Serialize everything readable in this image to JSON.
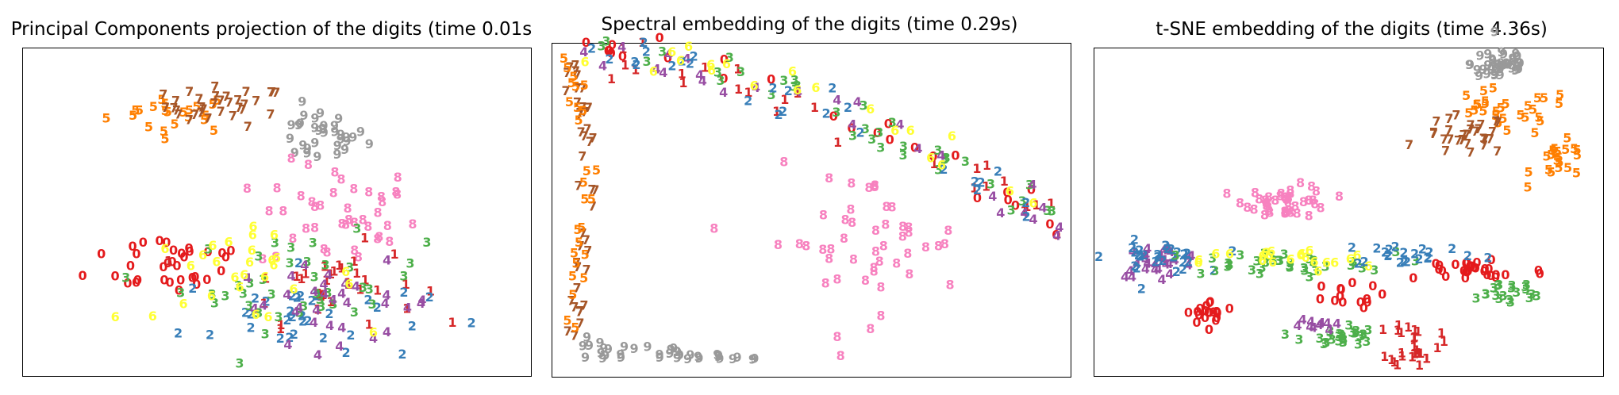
{
  "palette": {
    "0": "#e41a1c",
    "1": "#d62728",
    "2": "#377eb8",
    "3": "#4daf4a",
    "4": "#984ea3",
    "5": "#ff7f00",
    "6": "#ffff33",
    "7": "#a65628",
    "8": "#f781bf",
    "9": "#999999"
  },
  "chart_data": [
    {
      "type": "scatter",
      "title": "Principal Components projection of the digits (time 0.01s",
      "xlim": [
        0,
        1
      ],
      "ylim": [
        0,
        1
      ],
      "xticks": [],
      "yticks": [],
      "grid": false,
      "legend": "none",
      "clusters": [
        {
          "digit": "5",
          "cx": 0.3,
          "cy": 0.8,
          "sx": 0.11,
          "sy": 0.05,
          "n": 22
        },
        {
          "digit": "7",
          "cx": 0.4,
          "cy": 0.82,
          "sx": 0.1,
          "sy": 0.05,
          "n": 34
        },
        {
          "digit": "9",
          "cx": 0.58,
          "cy": 0.73,
          "sx": 0.08,
          "sy": 0.07,
          "n": 32
        },
        {
          "digit": "8",
          "cx": 0.62,
          "cy": 0.48,
          "sx": 0.13,
          "sy": 0.14,
          "n": 42
        },
        {
          "digit": "0",
          "cx": 0.3,
          "cy": 0.35,
          "sx": 0.14,
          "sy": 0.09,
          "n": 34
        },
        {
          "digit": "1",
          "cx": 0.6,
          "cy": 0.28,
          "sx": 0.15,
          "sy": 0.1,
          "n": 34
        },
        {
          "digit": "2",
          "cx": 0.55,
          "cy": 0.18,
          "sx": 0.2,
          "sy": 0.12,
          "n": 34
        },
        {
          "digit": "3",
          "cx": 0.55,
          "cy": 0.28,
          "sx": 0.2,
          "sy": 0.12,
          "n": 40
        },
        {
          "digit": "4",
          "cx": 0.62,
          "cy": 0.22,
          "sx": 0.17,
          "sy": 0.1,
          "n": 32
        },
        {
          "digit": "6",
          "cx": 0.42,
          "cy": 0.3,
          "sx": 0.2,
          "sy": 0.11,
          "n": 28
        }
      ]
    },
    {
      "type": "scatter",
      "title": "Spectral embedding of the digits (time 0.29s)",
      "xlim": [
        0,
        1
      ],
      "ylim": [
        0,
        1
      ],
      "xticks": [],
      "yticks": [],
      "grid": false,
      "legend": "none",
      "clusters": [
        {
          "digit": "7",
          "path": "left",
          "n": 40
        },
        {
          "digit": "5",
          "path": "left",
          "n": 26
        },
        {
          "digit": "9",
          "path": "bottom",
          "n": 36
        },
        {
          "digit": "0",
          "path": "arc",
          "n": 26
        },
        {
          "digit": "1",
          "path": "arc",
          "n": 26
        },
        {
          "digit": "3",
          "path": "arc",
          "n": 34
        },
        {
          "digit": "4",
          "path": "arc",
          "n": 26
        },
        {
          "digit": "2",
          "path": "arc",
          "n": 26
        },
        {
          "digit": "6",
          "path": "arc",
          "n": 20
        },
        {
          "digit": "8",
          "cx": 0.6,
          "cy": 0.4,
          "sx": 0.16,
          "sy": 0.18,
          "n": 48
        }
      ]
    },
    {
      "type": "scatter",
      "title": "t-SNE embedding of the digits (time 4.36s)",
      "xlim": [
        0,
        1
      ],
      "ylim": [
        0,
        1
      ],
      "xticks": [],
      "yticks": [],
      "grid": false,
      "legend": "none",
      "clusters": [
        {
          "digit": "9",
          "cx": 0.8,
          "cy": 0.95,
          "sx": 0.05,
          "sy": 0.05,
          "n": 40
        },
        {
          "digit": "5",
          "cx": 0.8,
          "cy": 0.8,
          "sx": 0.12,
          "sy": 0.06,
          "n": 28
        },
        {
          "digit": "7",
          "cx": 0.73,
          "cy": 0.73,
          "sx": 0.07,
          "sy": 0.05,
          "n": 30
        },
        {
          "digit": "5",
          "cx": 0.92,
          "cy": 0.65,
          "sx": 0.05,
          "sy": 0.05,
          "n": 20
        },
        {
          "digit": "8",
          "cx": 0.38,
          "cy": 0.53,
          "sx": 0.07,
          "sy": 0.04,
          "n": 42
        },
        {
          "digit": "4",
          "cx": 0.13,
          "cy": 0.35,
          "sx": 0.07,
          "sy": 0.04,
          "n": 28
        },
        {
          "digit": "2",
          "cx": 0.12,
          "cy": 0.36,
          "sx": 0.08,
          "sy": 0.04,
          "n": 28
        },
        {
          "digit": "3",
          "cx": 0.35,
          "cy": 0.34,
          "sx": 0.2,
          "sy": 0.03,
          "n": 36
        },
        {
          "digit": "6",
          "cx": 0.38,
          "cy": 0.35,
          "sx": 0.14,
          "sy": 0.03,
          "n": 22
        },
        {
          "digit": "0",
          "cx": 0.75,
          "cy": 0.32,
          "sx": 0.12,
          "sy": 0.04,
          "n": 30
        },
        {
          "digit": "2",
          "cx": 0.62,
          "cy": 0.37,
          "sx": 0.12,
          "sy": 0.03,
          "n": 22
        },
        {
          "digit": "0",
          "cx": 0.23,
          "cy": 0.19,
          "sx": 0.04,
          "sy": 0.03,
          "n": 20
        },
        {
          "digit": "3",
          "cx": 0.48,
          "cy": 0.12,
          "sx": 0.06,
          "sy": 0.03,
          "n": 26
        },
        {
          "digit": "1",
          "cx": 0.63,
          "cy": 0.1,
          "sx": 0.04,
          "sy": 0.06,
          "n": 28
        },
        {
          "digit": "3",
          "cx": 0.8,
          "cy": 0.25,
          "sx": 0.08,
          "sy": 0.04,
          "n": 20
        },
        {
          "digit": "0",
          "cx": 0.48,
          "cy": 0.24,
          "sx": 0.07,
          "sy": 0.03,
          "n": 14
        },
        {
          "digit": "4",
          "cx": 0.42,
          "cy": 0.15,
          "sx": 0.04,
          "sy": 0.03,
          "n": 10
        }
      ]
    }
  ]
}
